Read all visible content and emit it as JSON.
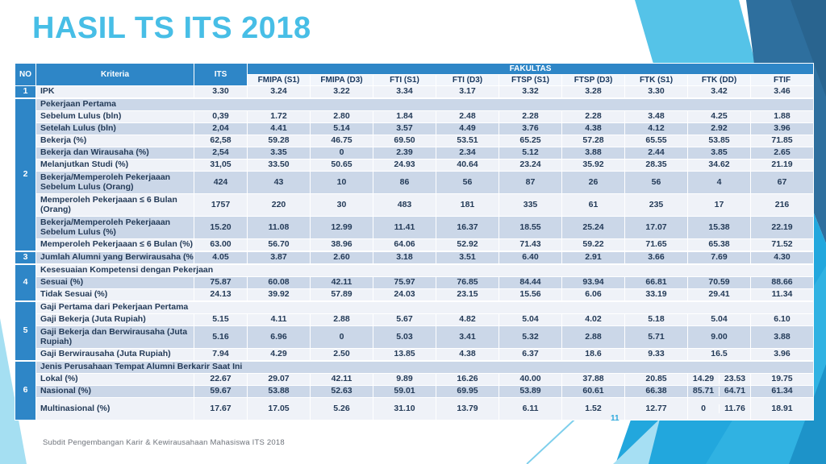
{
  "slide": {
    "title": "HASIL TS ITS 2018",
    "footer": "Subdit Pengembangan Karir & Kewirausahaan Mahasiswa ITS 2018",
    "page_number": "11"
  },
  "colors": {
    "title_blue": "#47BEE6",
    "header_blue": "#2E86C7",
    "row_light": "#EFF2F8",
    "row_dark": "#CBD7E8",
    "subheader_bg": "#F1F5FB",
    "body_text": "#243B58",
    "accent_azure": "#22A7DD",
    "accent_steel": "#2E6F9E",
    "accent_lightband": "#55C3E8"
  },
  "table": {
    "header": {
      "no": "NO",
      "kriteria": "Kriteria",
      "its": "ITS",
      "fakultas": "FAKULTAS",
      "faculties": [
        "FMIPA (S1)",
        "FMIPA (D3)",
        "FTI (S1)",
        "FTI (D3)",
        "FTSP (S1)",
        "FTSP (D3)",
        "FTK (S1)",
        "FTK (DD)",
        "FTIF"
      ]
    },
    "sections": [
      {
        "no": "1",
        "rows": [
          {
            "label": "IPK",
            "shade": "light",
            "values": [
              "3.30",
              "3.24",
              "3.22",
              "3.34",
              "3.17",
              "3.32",
              "3.28",
              "3.30",
              "3.42",
              "3.46"
            ]
          }
        ]
      },
      {
        "no": "2",
        "rows": [
          {
            "label": "Pekerjaan Pertama",
            "type": "title",
            "shade": "dark"
          },
          {
            "label": "Sebelum Lulus (bln)",
            "shade": "light",
            "values": [
              "0,39",
              "1.72",
              "2.80",
              "1.84",
              "2.48",
              "2.28",
              "2.28",
              "3.48",
              "4.25",
              "1.88"
            ]
          },
          {
            "label": "Setelah Lulus (bln)",
            "shade": "dark",
            "values": [
              "2,04",
              "4.41",
              "5.14",
              "3.57",
              "4.49",
              "3.76",
              "4.38",
              "4.12",
              "2.92",
              "3.96"
            ]
          },
          {
            "label": "Bekerja (%)",
            "shade": "light",
            "values": [
              "62,58",
              "59.28",
              "46.75",
              "69.50",
              "53.51",
              "65.25",
              "57.28",
              "65.55",
              "53.85",
              "71.85"
            ]
          },
          {
            "label": "Bekerja dan Wirausaha (%)",
            "shade": "dark",
            "values": [
              "2,54",
              "3.35",
              "0",
              "2.39",
              "2.34",
              "5.12",
              "3.88",
              "2.44",
              "3.85",
              "2.65"
            ]
          },
          {
            "label": "Melanjutkan Studi (%)",
            "shade": "light",
            "values": [
              "31,05",
              "33.50",
              "50.65",
              "24.93",
              "40.64",
              "23.24",
              "35.92",
              "28.35",
              "34.62",
              "21.19"
            ]
          },
          {
            "label": "Bekerja/Memperoleh Pekerjaaan Sebelum Lulus (Orang)",
            "shade": "dark",
            "tall": true,
            "values": [
              "424",
              "43",
              "10",
              "86",
              "56",
              "87",
              "26",
              "56",
              "4",
              "67"
            ]
          },
          {
            "label": "Memperoleh Pekerjaaan ≤ 6 Bulan (Orang)",
            "shade": "light",
            "tall": true,
            "values": [
              "1757",
              "220",
              "30",
              "483",
              "181",
              "335",
              "61",
              "235",
              "17",
              "216"
            ]
          },
          {
            "label": "Bekerja/Memperoleh Pekerjaaan Sebelum Lulus (%)",
            "shade": "dark",
            "tall": true,
            "values": [
              "15.20",
              "11.08",
              "12.99",
              "11.41",
              "16.37",
              "18.55",
              "25.24",
              "17.07",
              "15.38",
              "22.19"
            ]
          },
          {
            "label": "Memperoleh Pekerjaaan ≤ 6 Bulan (%)",
            "shade": "light",
            "values": [
              "63.00",
              "56.70",
              "38.96",
              "64.06",
              "52.92",
              "71.43",
              "59.22",
              "71.65",
              "65.38",
              "71.52"
            ]
          }
        ]
      },
      {
        "no": "3",
        "rows": [
          {
            "label": "Jumlah Alumni yang Berwirausaha (%)",
            "shade": "dark",
            "values": [
              "4.05",
              "3.87",
              "2.60",
              "3.18",
              "3.51",
              "6.40",
              "2.91",
              "3.66",
              "7.69",
              "4.30"
            ]
          }
        ]
      },
      {
        "no": "4",
        "rows": [
          {
            "label": "Kesesuaian Kompetensi dengan Pekerjaan",
            "type": "title",
            "shade": "light"
          },
          {
            "label": "Sesuai (%)",
            "shade": "dark",
            "values": [
              "75.87",
              "60.08",
              "42.11",
              "75.97",
              "76.85",
              "84.44",
              "93.94",
              "66.81",
              "70.59",
              "88.66"
            ]
          },
          {
            "label": "Tidak Sesuai (%)",
            "shade": "light",
            "values": [
              "24.13",
              "39.92",
              "57.89",
              "24.03",
              "23.15",
              "15.56",
              "6.06",
              "33.19",
              "29.41",
              "11.34"
            ]
          }
        ]
      },
      {
        "no": "5",
        "rows": [
          {
            "label": "Gaji Pertama dari Pekerjaan Pertama",
            "type": "title",
            "shade": "light"
          },
          {
            "label": "Gaji Bekerja (Juta Rupiah)",
            "shade": "light",
            "values": [
              "5.15",
              "4.11",
              "2.88",
              "5.67",
              "4.82",
              "5.04",
              "4.02",
              "5.18",
              "5.04",
              "6.10"
            ]
          },
          {
            "label": "Gaji Bekerja dan Berwirausaha (Juta Rupiah)",
            "shade": "dark",
            "tall": true,
            "values": [
              "5.16",
              "6.96",
              "0",
              "5.03",
              "3.41",
              "5.32",
              "2.88",
              "5.71",
              "9.00",
              "3.88"
            ]
          },
          {
            "label": "Gaji Berwirausaha (Juta Rupiah)",
            "shade": "light",
            "values": [
              "7.94",
              "4.29",
              "2.50",
              "13.85",
              "4.38",
              "6.37",
              "18.6",
              "9.33",
              "16.5",
              "3.96"
            ]
          }
        ]
      },
      {
        "no": "6",
        "rows": [
          {
            "label": "Jenis Perusahaan Tempat Alumni Berkarir Saat Ini",
            "type": "title",
            "shade": "dark"
          },
          {
            "label": "Lokal (%)",
            "shade": "light",
            "values": [
              "22.67",
              "29.07",
              "42.11",
              "9.89",
              "16.26",
              "40.00",
              "37.88",
              "20.85",
              [
                "14.29",
                "23.53"
              ],
              "19.75"
            ]
          },
          {
            "label": "Nasional (%)",
            "shade": "dark",
            "values": [
              "59.67",
              "53.88",
              "52.63",
              "59.01",
              "69.95",
              "53.89",
              "60.61",
              "66.38",
              [
                "85.71",
                "64.71"
              ],
              "61.34"
            ]
          },
          {
            "label": "Multinasional (%)",
            "shade": "light",
            "tall": true,
            "values": [
              "17.67",
              "17.05",
              "5.26",
              "31.10",
              "13.79",
              "6.11",
              "1.52",
              "12.77",
              [
                "0",
                "11.76"
              ],
              "18.91"
            ]
          }
        ]
      }
    ]
  }
}
